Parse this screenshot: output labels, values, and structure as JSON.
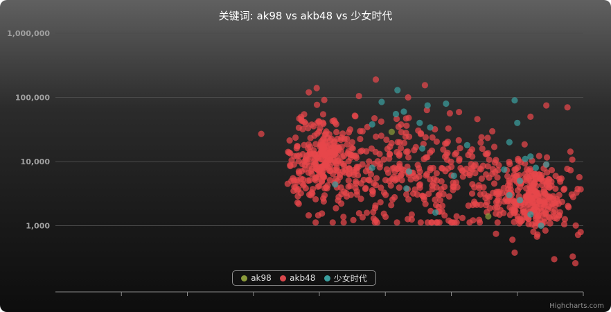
{
  "chart_data": {
    "type": "scatter",
    "title": "关键词: ak98 vs akb48 vs 少女时代",
    "y_scale": "log",
    "ylim": [
      100,
      1000000
    ],
    "y_ticks": [
      {
        "value": 1000,
        "label": "1,000"
      },
      {
        "value": 10000,
        "label": "10,000"
      },
      {
        "value": 100000,
        "label": "100,000"
      },
      {
        "value": 1000000,
        "label": "1,000,000"
      }
    ],
    "x_tick_count": 8,
    "grid": true,
    "legend_position": "bottom-center",
    "series": [
      {
        "name": "ak98",
        "color": "#8a9a3a",
        "points": [
          [
            0.637,
            29000
          ],
          [
            0.82,
            1400
          ]
        ]
      },
      {
        "name": "akb48",
        "color": "#e8474b",
        "generated_cloud": true
      },
      {
        "name": "少女时代",
        "color": "#3a9e9e",
        "points": [
          [
            0.618,
            85000
          ],
          [
            0.648,
            130000
          ],
          [
            0.66,
            60000
          ],
          [
            0.705,
            75000
          ],
          [
            0.74,
            80000
          ],
          [
            0.87,
            90000
          ],
          [
            0.875,
            40000
          ],
          [
            0.86,
            20000
          ],
          [
            0.9,
            12000
          ],
          [
            0.91,
            8000
          ],
          [
            0.88,
            5000
          ],
          [
            0.86,
            3000
          ],
          [
            0.9,
            1500
          ],
          [
            0.92,
            1000
          ],
          [
            0.72,
            1600
          ],
          [
            0.665,
            3800
          ],
          [
            0.695,
            16000
          ],
          [
            0.67,
            7000
          ],
          [
            0.645,
            55000
          ],
          [
            0.69,
            40000
          ],
          [
            0.755,
            6000
          ],
          [
            0.53,
            4400
          ],
          [
            0.6,
            8000
          ],
          [
            0.78,
            18000
          ],
          [
            0.89,
            11000
          ],
          [
            0.93,
            9000
          ],
          [
            0.85,
            7500
          ],
          [
            0.6,
            38000
          ],
          [
            0.71,
            34000
          ],
          [
            0.88,
            2500
          ]
        ]
      }
    ]
  },
  "credits": "Highcharts.com"
}
